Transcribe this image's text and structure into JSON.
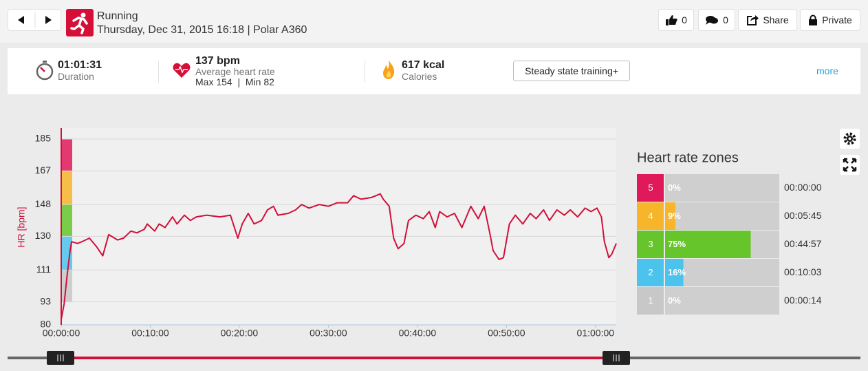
{
  "header": {
    "sport": "Running",
    "subtitle": "Thursday, Dec 31, 2015 16:18 | Polar A360",
    "likes": "0",
    "comments": "0",
    "share": "Share",
    "privacy": "Private"
  },
  "summary": {
    "duration": "01:01:31",
    "duration_label": "Duration",
    "heart_rate": "137 bpm",
    "heart_rate_label": "Average heart rate",
    "heart_rate_range": "Max 154  |  Min 82",
    "calories": "617 kcal",
    "calories_label": "Calories",
    "training_benefit": "Steady state training+",
    "more": "more"
  },
  "chart_data": {
    "type": "line",
    "y_label": "HR [bpm]",
    "color": "#d0103a",
    "x": [
      0,
      20,
      40,
      60,
      70,
      110,
      140,
      190,
      240,
      280,
      320,
      380,
      420,
      470,
      510,
      560,
      580,
      630,
      660,
      700,
      750,
      780,
      830,
      870,
      910,
      980,
      1070,
      1140,
      1190,
      1220,
      1260,
      1300,
      1350,
      1390,
      1430,
      1460,
      1530,
      1580,
      1620,
      1670,
      1740,
      1800,
      1860,
      1930,
      1970,
      2020,
      2090,
      2150,
      2170,
      2210,
      2240,
      2270,
      2310,
      2340,
      2390,
      2440,
      2480,
      2520,
      2550,
      2600,
      2650,
      2700,
      2760,
      2810,
      2850,
      2890,
      2910,
      2950,
      2980,
      3020,
      3060,
      3110,
      3160,
      3200,
      3250,
      3290,
      3340,
      3390,
      3430,
      3480,
      3530,
      3570,
      3610,
      3640,
      3660,
      3690,
      3710,
      3740
    ],
    "values": [
      83,
      92,
      108,
      122,
      127,
      126,
      127,
      129,
      124,
      119,
      131,
      128,
      129,
      133,
      132,
      134,
      137,
      133,
      137,
      135,
      141,
      137,
      142,
      139,
      141,
      142,
      141,
      142,
      129,
      137,
      143,
      137,
      139,
      145,
      147,
      142,
      143,
      145,
      148,
      146,
      148,
      147,
      149,
      149,
      153,
      151,
      152,
      154,
      151,
      147,
      129,
      123,
      126,
      139,
      142,
      140,
      144,
      135,
      144,
      141,
      143,
      135,
      147,
      140,
      147,
      131,
      122,
      117,
      118,
      137,
      142,
      137,
      143,
      140,
      145,
      139,
      145,
      142,
      145,
      141,
      146,
      144,
      146,
      141,
      127,
      118,
      120,
      126
    ],
    "xlim": [
      0,
      3740
    ],
    "ylim": [
      80,
      185
    ],
    "xticks": [
      {
        "value": 0,
        "label": "00:00:00"
      },
      {
        "value": 600,
        "label": "00:10:00"
      },
      {
        "value": 1200,
        "label": "00:20:00"
      },
      {
        "value": 1800,
        "label": "00:30:00"
      },
      {
        "value": 2400,
        "label": "00:40:00"
      },
      {
        "value": 3000,
        "label": "00:50:00"
      },
      {
        "value": 3600,
        "label": "01:00:00"
      }
    ],
    "yticks": [
      80,
      93,
      111,
      130,
      148,
      167,
      185
    ],
    "grid": true
  },
  "heart_rate_zones": {
    "title": "Heart rate zones",
    "zones": [
      {
        "zone": 5,
        "percent": 0,
        "percent_label": "0%",
        "time": "00:00:00",
        "color": "#e0195a"
      },
      {
        "zone": 4,
        "percent": 9,
        "percent_label": "9%",
        "time": "00:05:45",
        "color": "#f7b52c"
      },
      {
        "zone": 3,
        "percent": 75,
        "percent_label": "75%",
        "time": "00:44:57",
        "color": "#66c52a"
      },
      {
        "zone": 2,
        "percent": 16,
        "percent_label": "16%",
        "time": "00:10:03",
        "color": "#4cc3ec"
      },
      {
        "zone": 1,
        "percent": 0,
        "percent_label": "0%",
        "time": "00:00:14",
        "color": "#c8c8c8"
      }
    ]
  }
}
